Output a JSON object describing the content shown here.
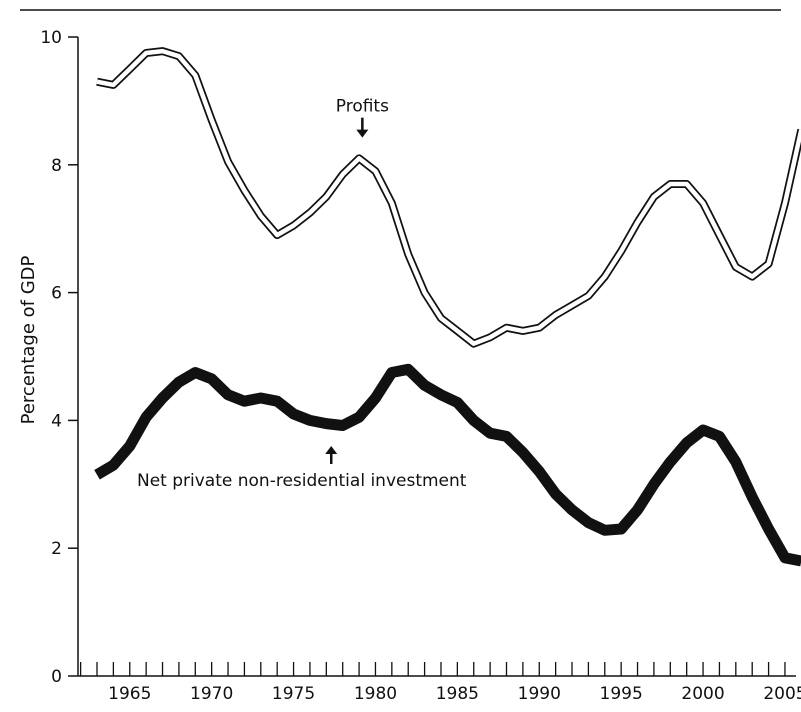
{
  "chart_data": {
    "type": "line",
    "title": "",
    "xlabel": "",
    "ylabel": "Percentage of GDP",
    "xlim": [
      1962,
      2006
    ],
    "ylim": [
      0,
      10
    ],
    "x_ticks": [
      1965,
      1970,
      1975,
      1980,
      1985,
      1990,
      1995,
      2000,
      2005
    ],
    "y_ticks": [
      0,
      2,
      4,
      6,
      8,
      10
    ],
    "grid": false,
    "legend": "none",
    "series": [
      {
        "name": "Profits",
        "style": "hollow-outline",
        "x": [
          1963,
          1964,
          1965,
          1966,
          1967,
          1968,
          1969,
          1970,
          1971,
          1972,
          1973,
          1974,
          1975,
          1976,
          1977,
          1978,
          1979,
          1980,
          1981,
          1982,
          1983,
          1984,
          1985,
          1986,
          1987,
          1988,
          1989,
          1990,
          1991,
          1992,
          1993,
          1994,
          1995,
          1996,
          1997,
          1998,
          1999,
          2000,
          2001,
          2002,
          2003,
          2004,
          2005,
          2006
        ],
        "y": [
          9.3,
          9.25,
          9.5,
          9.75,
          9.78,
          9.7,
          9.4,
          8.7,
          8.05,
          7.6,
          7.2,
          6.9,
          7.05,
          7.25,
          7.5,
          7.85,
          8.1,
          7.9,
          7.4,
          6.6,
          6.0,
          5.6,
          5.4,
          5.2,
          5.3,
          5.45,
          5.4,
          5.45,
          5.65,
          5.8,
          5.95,
          6.25,
          6.65,
          7.1,
          7.5,
          7.7,
          7.7,
          7.4,
          6.9,
          6.4,
          6.25,
          6.45,
          7.4,
          8.55
        ]
      },
      {
        "name": "Net private non-residential investment",
        "style": "thick-solid",
        "x": [
          1963,
          1964,
          1965,
          1966,
          1967,
          1968,
          1969,
          1970,
          1971,
          1972,
          1973,
          1974,
          1975,
          1976,
          1977,
          1978,
          1979,
          1980,
          1981,
          1982,
          1983,
          1984,
          1985,
          1986,
          1987,
          1988,
          1989,
          1990,
          1991,
          1992,
          1993,
          1994,
          1995,
          1996,
          1997,
          1998,
          1999,
          2000,
          2001,
          2002,
          2003,
          2004,
          2005,
          2006
        ],
        "y": [
          3.15,
          3.3,
          3.6,
          4.05,
          4.35,
          4.6,
          4.75,
          4.65,
          4.4,
          4.3,
          4.35,
          4.3,
          4.1,
          4.0,
          3.95,
          3.92,
          4.05,
          4.35,
          4.75,
          4.8,
          4.55,
          4.4,
          4.28,
          4.0,
          3.8,
          3.75,
          3.5,
          3.2,
          2.85,
          2.6,
          2.4,
          2.28,
          2.3,
          2.6,
          3.0,
          3.35,
          3.65,
          3.85,
          3.75,
          3.35,
          2.8,
          2.3,
          1.85,
          1.8
        ]
      }
    ],
    "annotations": [
      {
        "text": "Profits",
        "x": 1979.2,
        "y": 8.55,
        "arrow": "down",
        "series": "Profits"
      },
      {
        "text": "Net private non-residential investment",
        "x": 1977.3,
        "y": 3.6,
        "arrow": "up",
        "series": "Net private non-residential investment"
      }
    ]
  },
  "colors": {
    "background": "#ffffff",
    "ink": "#111111",
    "profits_fill": "#ffffff"
  }
}
